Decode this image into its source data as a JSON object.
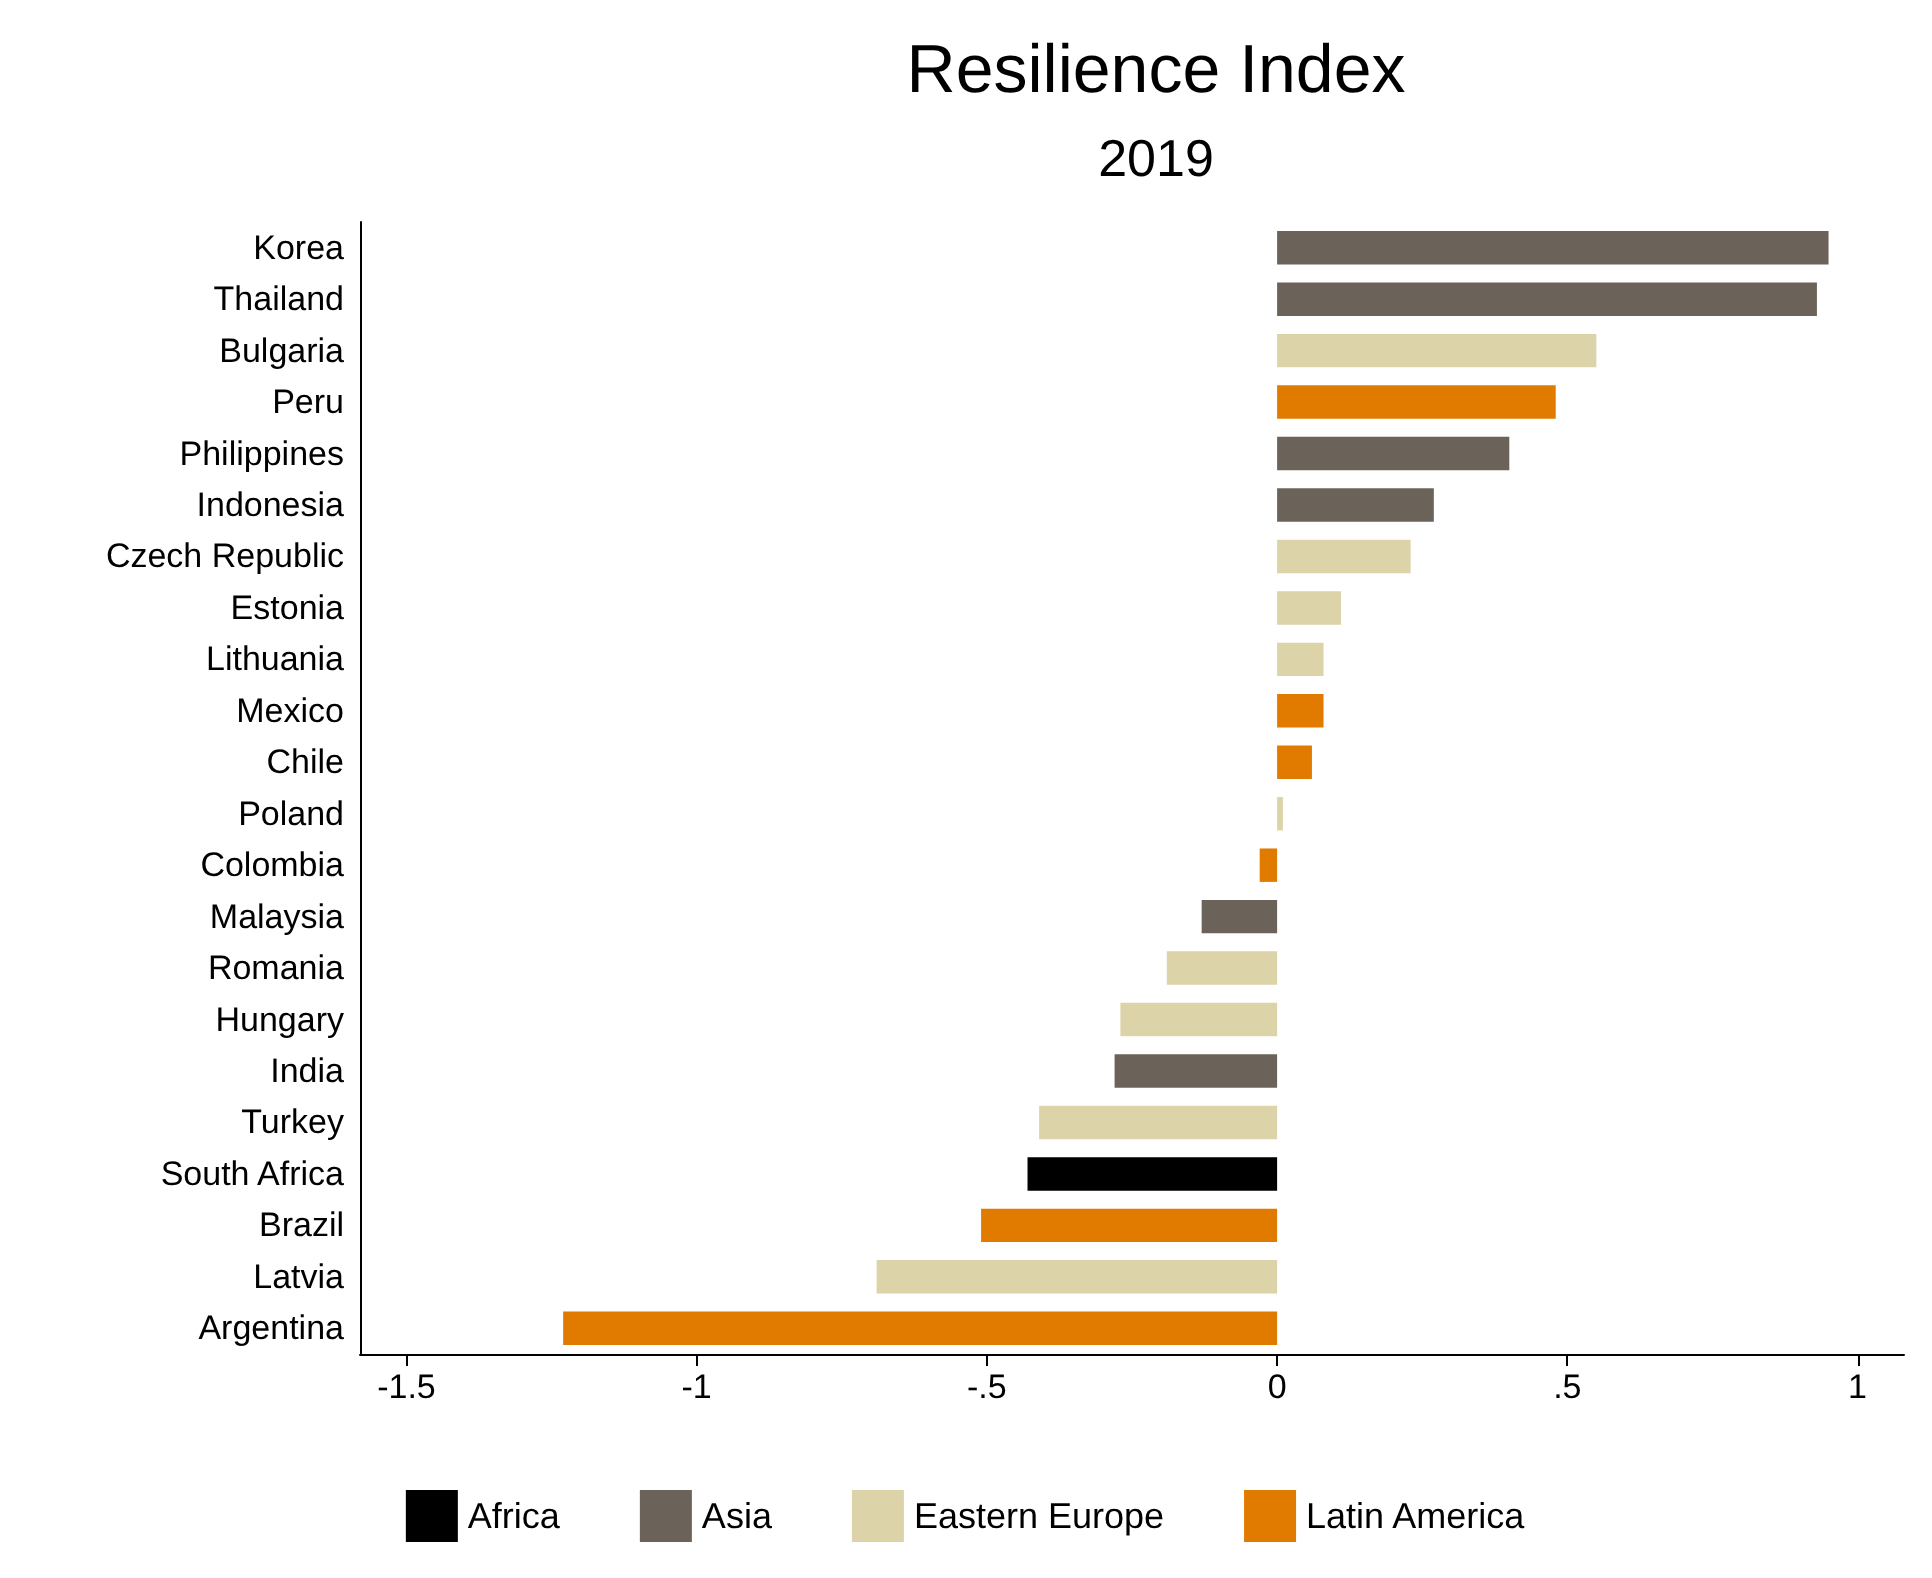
{
  "chart_data": {
    "type": "bar",
    "orientation": "horizontal",
    "title": "Resilience Index",
    "subtitle": "2019",
    "categories": [
      "Korea",
      "Thailand",
      "Bulgaria",
      "Peru",
      "Philippines",
      "Indonesia",
      "Czech Republic",
      "Estonia",
      "Lithuania",
      "Mexico",
      "Chile",
      "Poland",
      "Colombia",
      "Malaysia",
      "Romania",
      "Hungary",
      "India",
      "Turkey",
      "South Africa",
      "Brazil",
      "Latvia",
      "Argentina"
    ],
    "series": [
      {
        "name": "Africa",
        "color": "#000000",
        "values": [
          null,
          null,
          null,
          null,
          null,
          null,
          null,
          null,
          null,
          null,
          null,
          null,
          null,
          null,
          null,
          null,
          null,
          null,
          -0.43,
          null,
          null,
          null
        ]
      },
      {
        "name": "Asia",
        "color": "#6b635a",
        "values": [
          0.95,
          0.93,
          null,
          null,
          0.4,
          0.27,
          null,
          null,
          null,
          null,
          null,
          null,
          null,
          -0.13,
          null,
          null,
          -0.28,
          null,
          null,
          null,
          null,
          null
        ]
      },
      {
        "name": "Eastern Europe",
        "color": "#ddd3a8",
        "values": [
          null,
          null,
          0.55,
          null,
          null,
          null,
          0.23,
          0.11,
          0.08,
          null,
          null,
          0.01,
          null,
          null,
          -0.19,
          -0.27,
          null,
          -0.41,
          null,
          null,
          -0.69,
          null
        ]
      },
      {
        "name": "Latin America",
        "color": "#e07b00",
        "values": [
          null,
          null,
          null,
          0.48,
          null,
          null,
          null,
          null,
          null,
          0.08,
          0.06,
          null,
          -0.03,
          null,
          null,
          null,
          null,
          null,
          null,
          -0.51,
          null,
          -1.23
        ]
      }
    ],
    "xlim": [
      -1.58,
      1.08
    ],
    "xticks": [
      {
        "value": -1.5,
        "label": "-1.5"
      },
      -1,
      {
        "value": -0.5,
        "label": "-.5"
      },
      0,
      {
        "value": 0.5,
        "label": ".5"
      },
      1
    ],
    "grid": false,
    "legend": "bottom"
  }
}
